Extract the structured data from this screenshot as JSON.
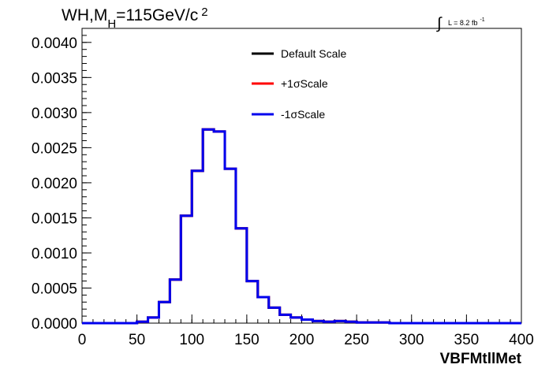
{
  "chart_data": {
    "type": "line",
    "step": true,
    "title_main": "WH,M",
    "title_sub": "H",
    "title_rest": "=115GeV/c",
    "title_sup": "2",
    "lumi_text": "L = 8.2 fb",
    "lumi_sup": "-1",
    "xlabel": "VBFMtllMet",
    "ylabel": "",
    "xlim": [
      0,
      400
    ],
    "ylim": [
      0,
      0.0042
    ],
    "grid": false,
    "legend_position": "top-right",
    "x_ticks": [
      "0",
      "50",
      "100",
      "150",
      "200",
      "250",
      "300",
      "350",
      "400"
    ],
    "y_ticks": [
      "0.0000",
      "0.0005",
      "0.0010",
      "0.0015",
      "0.0020",
      "0.0025",
      "0.0030",
      "0.0035",
      "0.0040"
    ],
    "bin_edges": [
      0,
      10,
      20,
      30,
      40,
      50,
      60,
      70,
      80,
      90,
      100,
      110,
      120,
      130,
      140,
      150,
      160,
      170,
      180,
      190,
      200,
      210,
      220,
      230,
      240,
      250,
      260,
      270,
      280,
      290,
      300,
      310,
      320,
      330,
      340,
      350,
      360,
      370,
      380,
      390,
      400
    ],
    "series": [
      {
        "name": "Default Scale",
        "color": "#000000",
        "values": [
          0,
          0,
          0,
          0,
          0,
          2e-05,
          8e-05,
          0.0003,
          0.00062,
          0.00153,
          0.00217,
          0.00276,
          0.00273,
          0.0022,
          0.00135,
          0.0006,
          0.00037,
          0.00022,
          0.00012,
          8e-05,
          5e-05,
          3e-05,
          2e-05,
          3e-05,
          2e-05,
          1e-05,
          1e-05,
          1e-05,
          0,
          0,
          0,
          0,
          0,
          0,
          0,
          0,
          0,
          0,
          0,
          0
        ]
      },
      {
        "name": "+1σScale",
        "color": "#ff0000",
        "values": [
          0,
          0,
          0,
          0,
          0,
          2e-05,
          8e-05,
          0.0003,
          0.00062,
          0.00153,
          0.00217,
          0.00276,
          0.00273,
          0.0022,
          0.00135,
          0.0006,
          0.00037,
          0.00022,
          0.00012,
          8e-05,
          5e-05,
          3e-05,
          2e-05,
          3e-05,
          2e-05,
          1e-05,
          1e-05,
          1e-05,
          0,
          0,
          0,
          0,
          0,
          0,
          0,
          0,
          0,
          0,
          0,
          0
        ]
      },
      {
        "name": "-1σScale",
        "color": "#0000ee",
        "values": [
          0,
          0,
          0,
          0,
          0,
          2e-05,
          8e-05,
          0.0003,
          0.00062,
          0.00153,
          0.00217,
          0.00276,
          0.00273,
          0.0022,
          0.00135,
          0.0006,
          0.00037,
          0.00022,
          0.00012,
          8e-05,
          5e-05,
          3e-05,
          2e-05,
          3e-05,
          2e-05,
          1e-05,
          1e-05,
          1e-05,
          0,
          0,
          0,
          0,
          0,
          0,
          0,
          0,
          0,
          0,
          0,
          0
        ]
      }
    ]
  }
}
